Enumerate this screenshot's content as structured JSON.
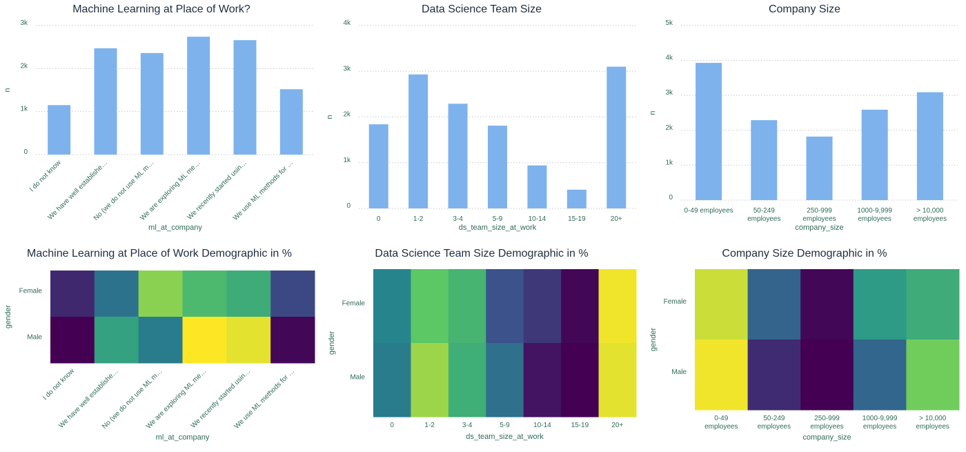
{
  "colors": {
    "bar": "#7eb2ec",
    "axis_text": "#2e6b55",
    "title": "#1f2d3d",
    "viridis": [
      "#440154",
      "#3b528b",
      "#21908d",
      "#5dc963",
      "#fde725"
    ]
  },
  "chart_data": [
    {
      "type": "bar",
      "title": "Machine Learning at Place of Work?",
      "xlabel": "ml_at_company",
      "ylabel": "n",
      "yticks": [
        "0",
        "1k",
        "2k",
        "3k"
      ],
      "ylim": [
        0,
        3000
      ],
      "grid": true,
      "categories": [
        "I do not know",
        "We have well establishe…",
        "No (we do not use ML m…",
        "We are exploring ML me…",
        "We recently started usin…",
        "We use ML methods for …"
      ],
      "values": [
        1150,
        2470,
        2360,
        2740,
        2660,
        1520
      ]
    },
    {
      "type": "bar",
      "title": "Data Science Team Size",
      "xlabel": "ds_team_size_at_work",
      "ylabel": "n",
      "yticks": [
        "0",
        "1k",
        "2k",
        "3k",
        "4k"
      ],
      "ylim": [
        0,
        4000
      ],
      "grid": true,
      "categories": [
        "0",
        "1-2",
        "3-4",
        "5-9",
        "10-14",
        "15-19",
        "20+"
      ],
      "values": [
        1840,
        2930,
        2290,
        1810,
        940,
        410,
        3100
      ]
    },
    {
      "type": "bar",
      "title": "Company Size",
      "xlabel": "company_size",
      "ylabel": "n",
      "yticks": [
        "0",
        "1k",
        "2k",
        "3k",
        "4k",
        "5k"
      ],
      "ylim": [
        0,
        5000
      ],
      "grid": true,
      "categories": [
        [
          "0-49 employees"
        ],
        [
          "50-249",
          "employees"
        ],
        [
          "250-999",
          "employees"
        ],
        [
          "1000-9,999",
          "employees"
        ],
        [
          "> 10,000",
          "employees"
        ]
      ],
      "values": [
        3930,
        2290,
        1820,
        2590,
        3090
      ]
    },
    {
      "type": "heatmap",
      "title": "Machine Learning at Place of Work Demographic in %",
      "xlabel": "ml_at_company",
      "ylabel": "gender",
      "rows": [
        "Female",
        "Male"
      ],
      "categories": [
        "I do not know",
        "We have well establishe…",
        "No (we do not use ML m…",
        "We are exploring ML me…",
        "We recently started usin…",
        "We use ML methods for …"
      ],
      "values": [
        [
          0.12,
          0.38,
          0.82,
          0.68,
          0.62,
          0.22
        ],
        [
          0.0,
          0.58,
          0.42,
          1.0,
          0.96,
          0.02
        ]
      ]
    },
    {
      "type": "heatmap",
      "title": "Data Science Team Size Demographic in %",
      "xlabel": "ds_team_size_at_work",
      "ylabel": "gender",
      "rows": [
        "Female",
        "Male"
      ],
      "categories": [
        "0",
        "1-2",
        "3-4",
        "5-9",
        "10-14",
        "15-19",
        "20+"
      ],
      "values": [
        [
          0.45,
          0.74,
          0.66,
          0.25,
          0.17,
          0.02,
          0.98
        ],
        [
          0.42,
          0.85,
          0.63,
          0.37,
          0.06,
          0.0,
          0.96
        ]
      ]
    },
    {
      "type": "heatmap",
      "title": "Company Size Demographic in %",
      "xlabel": "company_size",
      "ylabel": "gender",
      "rows": [
        "Female",
        "Male"
      ],
      "categories": [
        [
          "0-49",
          "employees"
        ],
        [
          "50-249",
          "employees"
        ],
        [
          "250-999",
          "employees"
        ],
        [
          "1000-9,999",
          "employees"
        ],
        [
          "> 10,000",
          "employees"
        ]
      ],
      "values": [
        [
          0.92,
          0.32,
          0.02,
          0.55,
          0.62
        ],
        [
          0.98,
          0.13,
          0.0,
          0.33,
          0.78
        ]
      ]
    }
  ]
}
